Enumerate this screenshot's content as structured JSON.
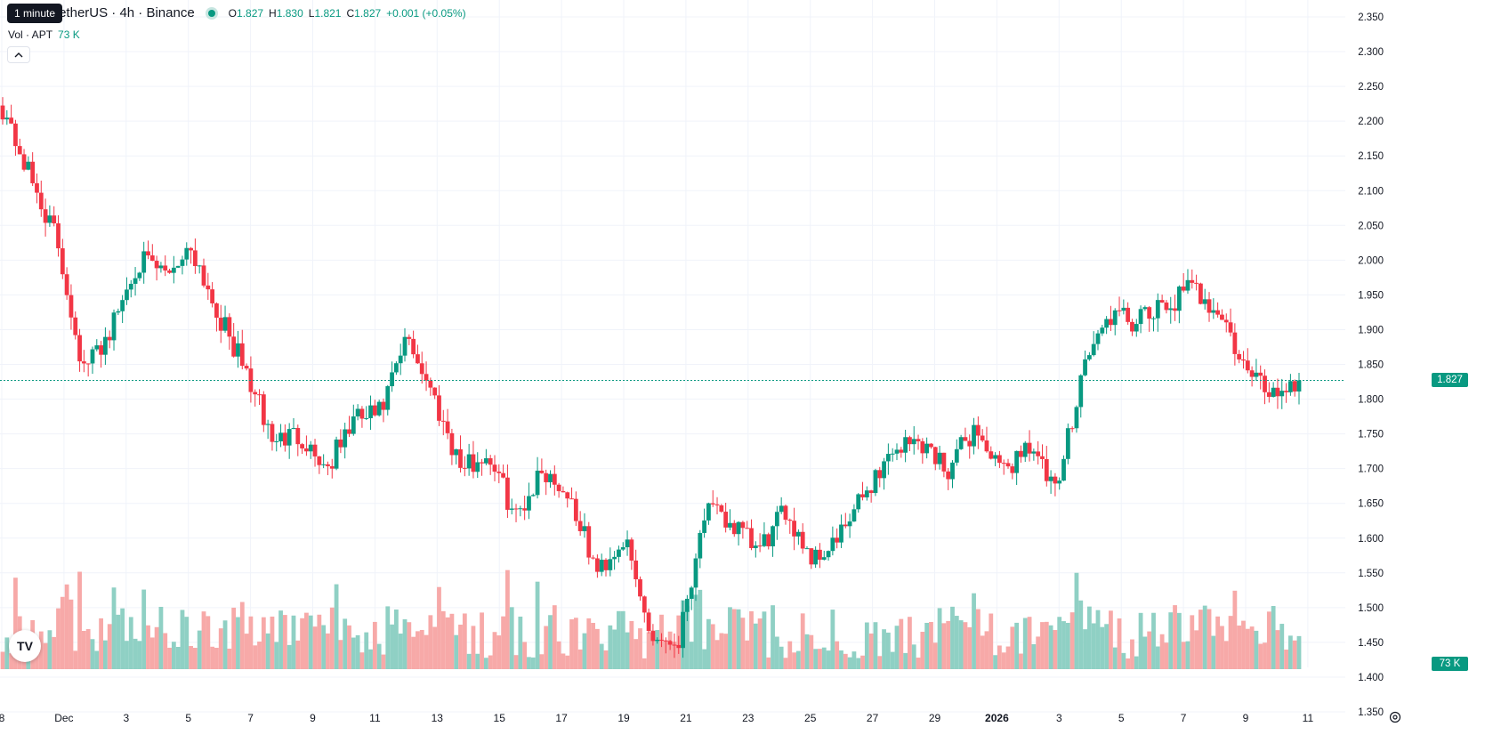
{
  "header": {
    "title": "Aptos / TetherUS · 4h · Binance",
    "open_label": "O",
    "open": "1.827",
    "high_label": "H",
    "high": "1.830",
    "low_label": "L",
    "low": "1.821",
    "close_label": "C",
    "close": "1.827",
    "change": "+0.001 (+0.05%)",
    "tooltip": "1 minute"
  },
  "volume_legend": {
    "label": "Vol · APT",
    "value": "73 K"
  },
  "price_tag": "1.827",
  "volume_tag": "73 K",
  "logo_text": "TV",
  "colors": {
    "up": "#089981",
    "down": "#f23645",
    "up_volume": "#8fd0c4",
    "down_volume": "#f7a9a8",
    "grid": "#f0f3fa"
  },
  "chart_data": {
    "type": "candlestick",
    "x_tick_labels": [
      "8",
      "Dec",
      "3",
      "5",
      "7",
      "9",
      "11",
      "13",
      "15",
      "17",
      "19",
      "21",
      "23",
      "25",
      "27",
      "29",
      "2026",
      "3",
      "5",
      "7",
      "9",
      "11"
    ],
    "y_tick_labels": [
      "2.350",
      "2.300",
      "2.250",
      "2.200",
      "2.150",
      "2.100",
      "2.050",
      "2.000",
      "1.950",
      "1.900",
      "1.850",
      "1.800",
      "1.750",
      "1.700",
      "1.650",
      "1.600",
      "1.550",
      "1.500",
      "1.450",
      "1.400",
      "1.350"
    ],
    "ylim": [
      1.33,
      2.36
    ],
    "last_price": 1.827,
    "interval": "4h",
    "anchors": [
      {
        "date": "Nov 28",
        "price": 2.22
      },
      {
        "date": "Nov 29",
        "price": 2.12
      },
      {
        "date": "Nov 30",
        "price": 2.03
      },
      {
        "date": "Dec 1",
        "price": 1.84
      },
      {
        "date": "Dec 2",
        "price": 1.9
      },
      {
        "date": "Dec 2",
        "price": 2.0
      },
      {
        "date": "Dec 3",
        "price": 1.98
      },
      {
        "date": "Dec 4",
        "price": 2.02
      },
      {
        "date": "Dec 5",
        "price": 1.92
      },
      {
        "date": "Dec 5",
        "price": 1.84
      },
      {
        "date": "Dec 6",
        "price": 1.74
      },
      {
        "date": "Dec 7",
        "price": 1.75
      },
      {
        "date": "Dec 8",
        "price": 1.7
      },
      {
        "date": "Dec 8",
        "price": 1.77
      },
      {
        "date": "Dec 9",
        "price": 1.78
      },
      {
        "date": "Dec 10",
        "price": 1.89
      },
      {
        "date": "Dec 10",
        "price": 1.8
      },
      {
        "date": "Dec 11",
        "price": 1.7
      },
      {
        "date": "Dec 12",
        "price": 1.72
      },
      {
        "date": "Dec 13",
        "price": 1.63
      },
      {
        "date": "Dec 14",
        "price": 1.7
      },
      {
        "date": "Dec 15",
        "price": 1.66
      },
      {
        "date": "Dec 16",
        "price": 1.55
      },
      {
        "date": "Dec 17",
        "price": 1.6
      },
      {
        "date": "Dec 18",
        "price": 1.46
      },
      {
        "date": "Dec 19",
        "price": 1.45
      },
      {
        "date": "Dec 20",
        "price": 1.64
      },
      {
        "date": "Dec 21",
        "price": 1.62
      },
      {
        "date": "Dec 22",
        "price": 1.58
      },
      {
        "date": "Dec 23",
        "price": 1.64
      },
      {
        "date": "Dec 24",
        "price": 1.57
      },
      {
        "date": "Dec 25",
        "price": 1.6
      },
      {
        "date": "Dec 26",
        "price": 1.67
      },
      {
        "date": "Dec 27",
        "price": 1.73
      },
      {
        "date": "Dec 28",
        "price": 1.74
      },
      {
        "date": "Dec 29",
        "price": 1.7
      },
      {
        "date": "Dec 29",
        "price": 1.76
      },
      {
        "date": "Dec 30",
        "price": 1.69
      },
      {
        "date": "Dec 31",
        "price": 1.74
      },
      {
        "date": "Jan 1",
        "price": 1.66
      },
      {
        "date": "Jan 2",
        "price": 1.85
      },
      {
        "date": "Jan 3",
        "price": 1.92
      },
      {
        "date": "Jan 4",
        "price": 1.91
      },
      {
        "date": "Jan 5",
        "price": 1.93
      },
      {
        "date": "Jan 6",
        "price": 1.96
      },
      {
        "date": "Jan 7",
        "price": 1.93
      },
      {
        "date": "Jan 8",
        "price": 1.84
      },
      {
        "date": "Jan 9",
        "price": 1.81
      },
      {
        "date": "Jan 10",
        "price": 1.827
      }
    ]
  }
}
